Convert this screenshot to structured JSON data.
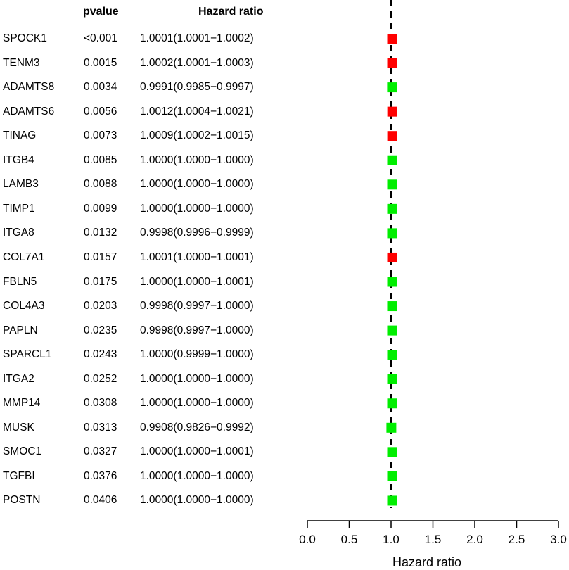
{
  "chart_data": {
    "type": "forest",
    "columns": {
      "pvalue": "pvalue",
      "hazard_ratio": "Hazard ratio"
    },
    "xlabel": "Hazard ratio",
    "xlim": [
      0.0,
      3.0
    ],
    "xticks": [
      "0.0",
      "0.5",
      "1.0",
      "1.5",
      "2.0",
      "2.5",
      "3.0"
    ],
    "reference_line": 1.0,
    "colors": {
      "risk": "#ff0000",
      "protective": "#00ee00"
    },
    "rows": [
      {
        "gene": "SPOCK1",
        "pvalue": "<0.001",
        "hr_text": "1.0001(1.0001−1.0002)",
        "hr": 1.0001,
        "color": "risk"
      },
      {
        "gene": "TENM3",
        "pvalue": "0.0015",
        "hr_text": "1.0002(1.0001−1.0003)",
        "hr": 1.0002,
        "color": "risk"
      },
      {
        "gene": "ADAMTS8",
        "pvalue": "0.0034",
        "hr_text": "0.9991(0.9985−0.9997)",
        "hr": 0.9991,
        "color": "protective"
      },
      {
        "gene": "ADAMTS6",
        "pvalue": "0.0056",
        "hr_text": "1.0012(1.0004−1.0021)",
        "hr": 1.0012,
        "color": "risk"
      },
      {
        "gene": "TINAG",
        "pvalue": "0.0073",
        "hr_text": "1.0009(1.0002−1.0015)",
        "hr": 1.0009,
        "color": "risk"
      },
      {
        "gene": "ITGB4",
        "pvalue": "0.0085",
        "hr_text": "1.0000(1.0000−1.0000)",
        "hr": 1.0,
        "color": "protective"
      },
      {
        "gene": "LAMB3",
        "pvalue": "0.0088",
        "hr_text": "1.0000(1.0000−1.0000)",
        "hr": 1.0,
        "color": "protective"
      },
      {
        "gene": "TIMP1",
        "pvalue": "0.0099",
        "hr_text": "1.0000(1.0000−1.0000)",
        "hr": 1.0,
        "color": "protective"
      },
      {
        "gene": "ITGA8",
        "pvalue": "0.0132",
        "hr_text": "0.9998(0.9996−0.9999)",
        "hr": 0.9998,
        "color": "protective"
      },
      {
        "gene": "COL7A1",
        "pvalue": "0.0157",
        "hr_text": "1.0001(1.0000−1.0001)",
        "hr": 1.0001,
        "color": "risk"
      },
      {
        "gene": "FBLN5",
        "pvalue": "0.0175",
        "hr_text": "1.0000(1.0000−1.0001)",
        "hr": 1.0,
        "color": "protective"
      },
      {
        "gene": "COL4A3",
        "pvalue": "0.0203",
        "hr_text": "0.9998(0.9997−1.0000)",
        "hr": 0.9998,
        "color": "protective"
      },
      {
        "gene": "PAPLN",
        "pvalue": "0.0235",
        "hr_text": "0.9998(0.9997−1.0000)",
        "hr": 0.9998,
        "color": "protective"
      },
      {
        "gene": "SPARCL1",
        "pvalue": "0.0243",
        "hr_text": "1.0000(0.9999−1.0000)",
        "hr": 1.0,
        "color": "protective"
      },
      {
        "gene": "ITGA2",
        "pvalue": "0.0252",
        "hr_text": "1.0000(1.0000−1.0000)",
        "hr": 1.0,
        "color": "protective"
      },
      {
        "gene": "MMP14",
        "pvalue": "0.0308",
        "hr_text": "1.0000(1.0000−1.0000)",
        "hr": 1.0,
        "color": "protective"
      },
      {
        "gene": "MUSK",
        "pvalue": "0.0313",
        "hr_text": "0.9908(0.9826−0.9992)",
        "hr": 0.9908,
        "color": "protective"
      },
      {
        "gene": "SMOC1",
        "pvalue": "0.0327",
        "hr_text": "1.0000(1.0000−1.0001)",
        "hr": 1.0,
        "color": "protective"
      },
      {
        "gene": "TGFBI",
        "pvalue": "0.0376",
        "hr_text": "1.0000(1.0000−1.0000)",
        "hr": 1.0,
        "color": "protective"
      },
      {
        "gene": "POSTN",
        "pvalue": "0.0406",
        "hr_text": "1.0000(1.0000−1.0000)",
        "hr": 1.0,
        "color": "protective"
      }
    ]
  }
}
